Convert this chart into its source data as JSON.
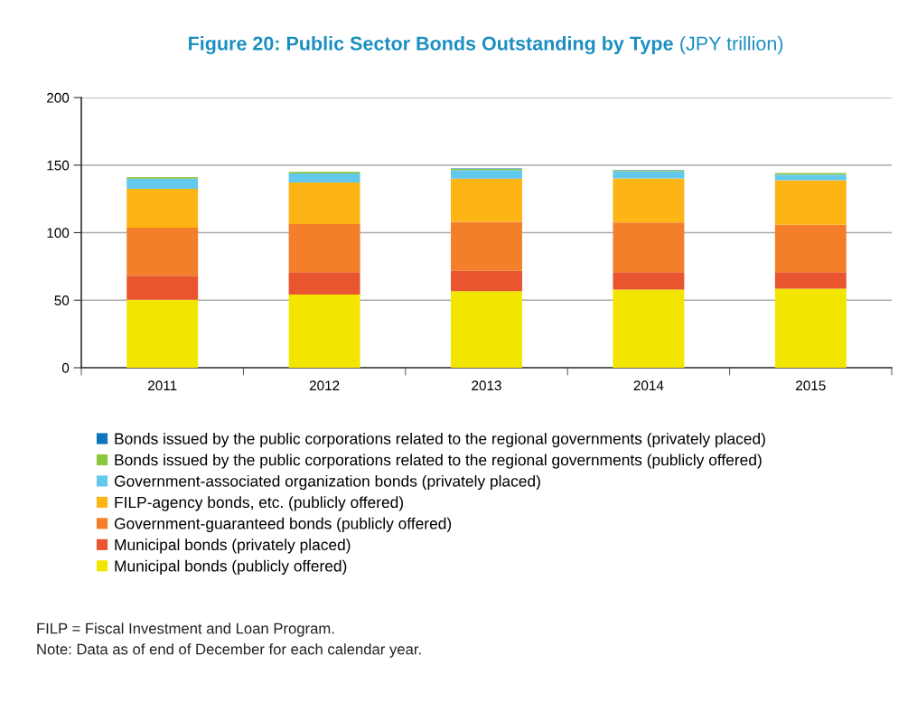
{
  "chart_data": {
    "type": "bar",
    "stacked": true,
    "title": "Figure 20: Public Sector Bonds Outstanding by Type",
    "subtitle": "(JPY trillion)",
    "categories": [
      "2011",
      "2012",
      "2013",
      "2014",
      "2015"
    ],
    "series": [
      {
        "name": "Municipal bonds (publicly offered)",
        "color": "#f2e600",
        "values": [
          50.4,
          54.2,
          56.7,
          57.8,
          58.5
        ]
      },
      {
        "name": "Municipal bonds (privately placed)",
        "color": "#e8552e",
        "values": [
          17.7,
          16.6,
          15.0,
          13.0,
          12.3
        ]
      },
      {
        "name": "Government-guaranteed bonds (publicly offered)",
        "color": "#f47f2a",
        "values": [
          35.5,
          35.5,
          36.3,
          36.8,
          35.0
        ]
      },
      {
        "name": "FILP-agency bonds, etc. (publicly offered)",
        "color": "#fdb515",
        "values": [
          28.8,
          30.8,
          32.0,
          32.6,
          33.0
        ]
      },
      {
        "name": "Government-associated organization bonds (privately placed)",
        "color": "#63c9ec",
        "values": [
          7.6,
          6.7,
          6.4,
          5.1,
          4.1
        ]
      },
      {
        "name": "Bonds issued by the public corporations related to the regional governments (publicly offered)",
        "color": "#8cc63f",
        "values": [
          1.1,
          1.1,
          0.7,
          0.5,
          1.3
        ]
      },
      {
        "name": "Bonds issued by the public corporations related to the regional governments (privately placed)",
        "color": "#0f75bc",
        "values": [
          null,
          null,
          0.4,
          0.4,
          null
        ]
      }
    ],
    "ylim": [
      0,
      200
    ],
    "yticks": [
      0,
      50,
      100,
      150,
      200
    ],
    "grid": "y",
    "legend": "bottom",
    "annotations": [
      "FILP = Fiscal Investment and Loan Program.",
      "Note: Data as of end of December for each calendar year."
    ]
  }
}
